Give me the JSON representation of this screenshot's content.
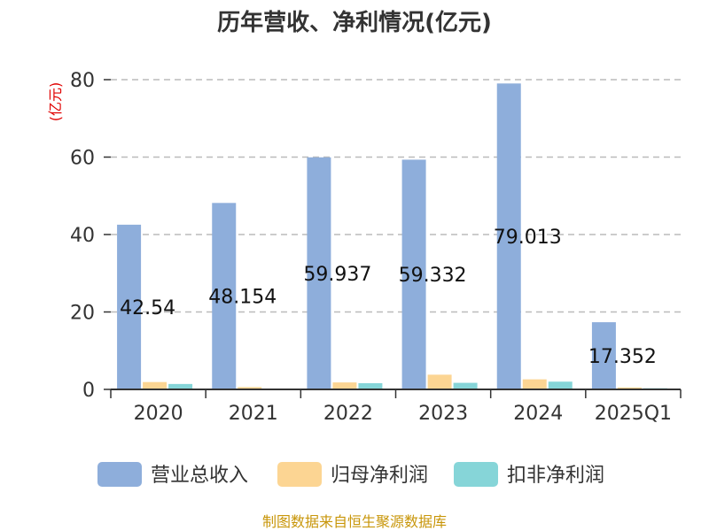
{
  "chart_data": {
    "type": "bar",
    "title": "历年营收、净利情况(亿元)",
    "ylabel": "(亿元)",
    "xlabel": "",
    "categories": [
      "2020",
      "2021",
      "2022",
      "2023",
      "2024",
      "2025Q1"
    ],
    "ylim": [
      0,
      80
    ],
    "yticks": [
      0,
      20,
      40,
      60,
      80
    ],
    "grid": true,
    "legend_position": "bottom",
    "series": [
      {
        "name": "营业总收入",
        "color": "#8eaedb",
        "values": [
          42.54,
          48.154,
          59.937,
          59.332,
          79.013,
          17.352
        ],
        "labels": [
          "42.54",
          "48.154",
          "59.937",
          "59.332",
          "79.013",
          "17.352"
        ]
      },
      {
        "name": "归母净利润",
        "color": "#fcd593",
        "values": [
          1.9,
          0.6,
          1.8,
          3.8,
          2.6,
          0.5
        ]
      },
      {
        "name": "扣非净利润",
        "color": "#86d5d8",
        "values": [
          1.4,
          0.2,
          1.6,
          1.7,
          2.0,
          0.3
        ]
      }
    ]
  },
  "source": "制图数据来自恒生聚源数据库"
}
